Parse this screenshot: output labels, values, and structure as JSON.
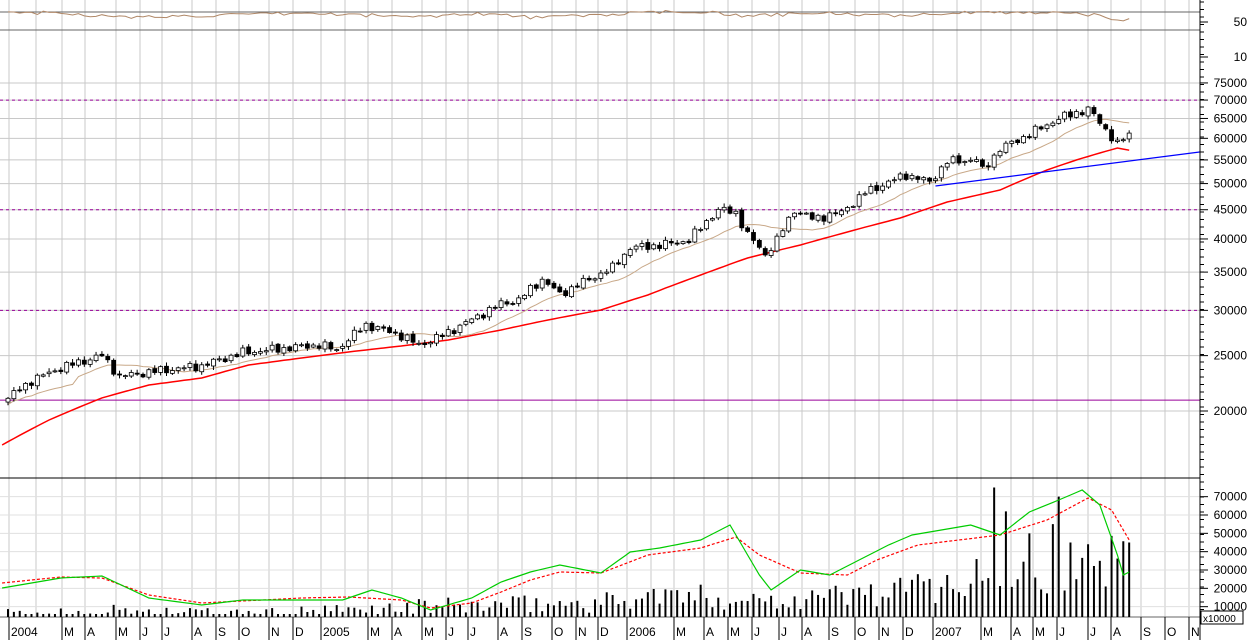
{
  "chart_data": [
    {
      "type": "candlestick",
      "name": "weekly price",
      "scale": "log",
      "ylim": [
        15500,
        78000
      ],
      "y_ticks": [
        75000,
        70000,
        65000,
        60000,
        55000,
        50000,
        45000,
        40000,
        35000,
        30000,
        25000,
        20000
      ],
      "weeks": 192,
      "close_keypoints": [
        [
          0,
          21050
        ],
        [
          4,
          22600
        ],
        [
          9,
          23800
        ],
        [
          16,
          25000
        ],
        [
          19,
          23000
        ],
        [
          24,
          23400
        ],
        [
          33,
          24000
        ],
        [
          40,
          25300
        ],
        [
          48,
          25800
        ],
        [
          53,
          26100
        ],
        [
          56,
          25600
        ],
        [
          61,
          28300
        ],
        [
          67,
          27100
        ],
        [
          70,
          26100
        ],
        [
          74,
          27100
        ],
        [
          79,
          28900
        ],
        [
          84,
          30800
        ],
        [
          87,
          31300
        ],
        [
          91,
          34000
        ],
        [
          94,
          32000
        ],
        [
          99,
          34000
        ],
        [
          103,
          35600
        ],
        [
          106,
          38600
        ],
        [
          111,
          39000
        ],
        [
          116,
          39800
        ],
        [
          121,
          45000
        ],
        [
          124,
          44500
        ],
        [
          126,
          40700
        ],
        [
          129,
          37600
        ],
        [
          131,
          39800
        ],
        [
          134,
          45000
        ],
        [
          137,
          43400
        ],
        [
          142,
          44500
        ],
        [
          146,
          48200
        ],
        [
          153,
          51800
        ],
        [
          157,
          50300
        ],
        [
          160,
          54600
        ],
        [
          165,
          55100
        ],
        [
          166,
          52700
        ],
        [
          169,
          57500
        ],
        [
          174,
          61000
        ],
        [
          179,
          65000
        ],
        [
          184,
          67500
        ],
        [
          186,
          64000
        ],
        [
          189,
          58600
        ],
        [
          191,
          61000
        ]
      ],
      "long_ma_keypoints": [
        [
          -1,
          17440
        ],
        [
          7,
          19290
        ],
        [
          16,
          21080
        ],
        [
          24,
          22210
        ],
        [
          33,
          22840
        ],
        [
          41,
          24070
        ],
        [
          50,
          24760
        ],
        [
          58,
          25370
        ],
        [
          67,
          25990
        ],
        [
          75,
          26620
        ],
        [
          84,
          27720
        ],
        [
          92,
          28860
        ],
        [
          101,
          30040
        ],
        [
          109,
          31920
        ],
        [
          118,
          34590
        ],
        [
          126,
          37050
        ],
        [
          135,
          39040
        ],
        [
          143,
          41140
        ],
        [
          152,
          43520
        ],
        [
          160,
          46420
        ],
        [
          169,
          48720
        ],
        [
          177,
          52820
        ],
        [
          182,
          54980
        ],
        [
          186,
          56560
        ],
        [
          189,
          57700
        ],
        [
          191,
          57200
        ]
      ],
      "short_ma_period": 13,
      "reference_lines": [
        {
          "value": 70000,
          "style": "dashed",
          "color": "#990099"
        },
        {
          "value": 45000,
          "style": "dashed",
          "color": "#990099"
        },
        {
          "value": 30000,
          "style": "dashed",
          "color": "#990099"
        },
        {
          "value": 20900,
          "style": "solid",
          "color": "#990099"
        }
      ],
      "trendline": {
        "start": [
          158,
          49520
        ],
        "end": [
          203,
          56780
        ],
        "color": "#0000ff"
      },
      "colors": {
        "long_ma": "#ff0000",
        "short_ma": "#c8a888",
        "up": "#ffffff",
        "down": "#000000"
      }
    },
    {
      "type": "bar",
      "name": "volume",
      "unit_label": "x10000",
      "y_ticks": [
        70000,
        60000,
        50000,
        40000,
        30000,
        20000,
        10000
      ],
      "volume_keypoints": [
        [
          0,
          6000
        ],
        [
          20,
          8000
        ],
        [
          40,
          6000
        ],
        [
          60,
          8000
        ],
        [
          70,
          10000
        ],
        [
          100,
          12000
        ],
        [
          110,
          16000
        ],
        [
          130,
          14000
        ],
        [
          150,
          18000
        ],
        [
          165,
          25000
        ],
        [
          191,
          38000
        ]
      ],
      "volume_peaks": [
        [
          168,
          75000
        ],
        [
          170,
          62000
        ],
        [
          174,
          50000
        ],
        [
          178,
          55000
        ],
        [
          179,
          70000
        ],
        [
          181,
          45000
        ],
        [
          186,
          35000
        ],
        [
          191,
          45000
        ]
      ],
      "green_line_keypoints": [
        [
          -1,
          20180
        ],
        [
          9,
          25640
        ],
        [
          16,
          26730
        ],
        [
          24,
          14730
        ],
        [
          33,
          10910
        ],
        [
          40,
          13640
        ],
        [
          50,
          13640
        ],
        [
          57,
          13640
        ],
        [
          62,
          19090
        ],
        [
          67,
          14730
        ],
        [
          72,
          8180
        ],
        [
          79,
          14730
        ],
        [
          84,
          23450
        ],
        [
          89,
          28910
        ],
        [
          94,
          32730
        ],
        [
          101,
          28360
        ],
        [
          106,
          39820
        ],
        [
          111,
          42000
        ],
        [
          118,
          46360
        ],
        [
          123,
          54550
        ],
        [
          128,
          27270
        ],
        [
          130,
          19090
        ],
        [
          135,
          30000
        ],
        [
          140,
          27270
        ],
        [
          145,
          35450
        ],
        [
          150,
          43640
        ],
        [
          154,
          49090
        ],
        [
          159,
          51820
        ],
        [
          164,
          54550
        ],
        [
          169,
          49090
        ],
        [
          174,
          61640
        ],
        [
          179,
          68180
        ],
        [
          183,
          73640
        ],
        [
          186,
          65450
        ],
        [
          189,
          38180
        ],
        [
          190,
          27270
        ],
        [
          191,
          28910
        ]
      ],
      "red_dashed_keypoints": [
        [
          -1,
          22910
        ],
        [
          9,
          26180
        ],
        [
          16,
          25640
        ],
        [
          24,
          16360
        ],
        [
          33,
          12000
        ],
        [
          50,
          14730
        ],
        [
          58,
          15270
        ],
        [
          67,
          13640
        ],
        [
          72,
          9270
        ],
        [
          79,
          12000
        ],
        [
          84,
          18000
        ],
        [
          89,
          24550
        ],
        [
          94,
          28910
        ],
        [
          101,
          28360
        ],
        [
          109,
          38180
        ],
        [
          118,
          42000
        ],
        [
          124,
          48000
        ],
        [
          128,
          38180
        ],
        [
          135,
          28360
        ],
        [
          143,
          27270
        ],
        [
          148,
          35450
        ],
        [
          155,
          43640
        ],
        [
          162,
          46360
        ],
        [
          169,
          49090
        ],
        [
          177,
          57270
        ],
        [
          184,
          69270
        ],
        [
          188,
          62730
        ],
        [
          191,
          46360
        ]
      ],
      "colors": {
        "bars": "#000000",
        "green_line": "#00cc00",
        "red_dashed": "#ff0000"
      }
    },
    {
      "type": "line",
      "name": "oscillator",
      "y_ticks": [
        50,
        10
      ],
      "keypoints": [
        [
          0,
          61
        ],
        [
          10,
          60
        ],
        [
          20,
          55
        ],
        [
          30,
          57
        ],
        [
          40,
          58
        ],
        [
          50,
          60
        ],
        [
          60,
          58
        ],
        [
          70,
          56
        ],
        [
          80,
          60
        ],
        [
          90,
          55
        ],
        [
          100,
          58
        ],
        [
          110,
          61
        ],
        [
          120,
          62
        ],
        [
          125,
          56
        ],
        [
          130,
          58
        ],
        [
          140,
          60
        ],
        [
          150,
          57
        ],
        [
          160,
          60
        ],
        [
          170,
          61
        ],
        [
          180,
          61
        ],
        [
          185,
          58
        ],
        [
          189,
          52
        ],
        [
          191,
          54
        ]
      ],
      "color": "#b08868"
    }
  ],
  "x_axis": {
    "labels": [
      "2004",
      "M",
      "A",
      "M",
      "J",
      "J",
      "A",
      "S",
      "O",
      "N",
      "D",
      "2005",
      "M",
      "A",
      "M",
      "J",
      "J",
      "A",
      "S",
      "O",
      "N",
      "D",
      "2006",
      "M",
      "A",
      "M",
      "J",
      "J",
      "A",
      "S",
      "O",
      "N",
      "D",
      "2007",
      "M",
      "A",
      "M",
      "J",
      "J",
      "A",
      "S",
      "O",
      "N"
    ]
  }
}
